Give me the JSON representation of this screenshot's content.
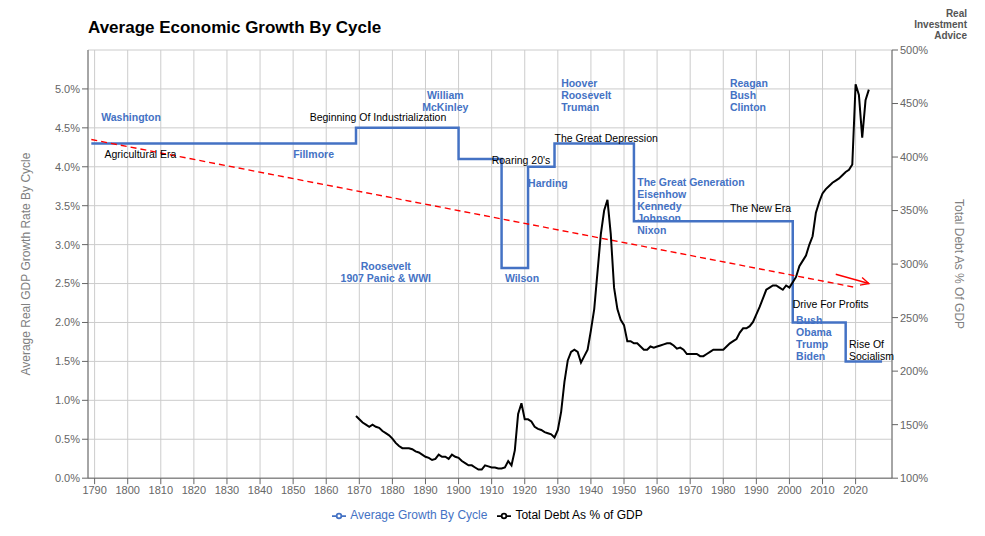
{
  "chart_data": {
    "type": "line",
    "title": "Average Economic Growth By Cycle",
    "subtitle": "Real\nInvestment\nAdvice",
    "ylabel": "Average Real GDP Growth Rate By Cycle",
    "y2label": "Total Debt As % Of GDP",
    "xlim": [
      1788,
      2031
    ],
    "xticks": [
      1790,
      1800,
      1810,
      1820,
      1830,
      1840,
      1850,
      1860,
      1870,
      1880,
      1890,
      1900,
      1910,
      1920,
      1930,
      1940,
      1950,
      1960,
      1970,
      1980,
      1990,
      2000,
      2010,
      2020
    ],
    "ylim": [
      0.0,
      0.055
    ],
    "yticks": [
      {
        "value": 0.0,
        "label": "0.0%"
      },
      {
        "value": 0.005,
        "label": "0.5%"
      },
      {
        "value": 0.01,
        "label": "1.0%"
      },
      {
        "value": 0.015,
        "label": "1.5%"
      },
      {
        "value": 0.02,
        "label": "2.0%"
      },
      {
        "value": 0.025,
        "label": "2.5%"
      },
      {
        "value": 0.03,
        "label": "3.0%"
      },
      {
        "value": 0.035,
        "label": "3.5%"
      },
      {
        "value": 0.04,
        "label": "4.0%"
      },
      {
        "value": 0.045,
        "label": "4.5%"
      },
      {
        "value": 0.05,
        "label": "5.0%"
      }
    ],
    "y2lim": [
      1.0,
      5.0
    ],
    "y2ticks": [
      {
        "value": 1.0,
        "label": "100%"
      },
      {
        "value": 1.5,
        "label": "150%"
      },
      {
        "value": 2.0,
        "label": "200%"
      },
      {
        "value": 2.5,
        "label": "250%"
      },
      {
        "value": 3.0,
        "label": "300%"
      },
      {
        "value": 3.5,
        "label": "350%"
      },
      {
        "value": 4.0,
        "label": "400%"
      },
      {
        "value": 4.5,
        "label": "450%"
      },
      {
        "value": 5.0,
        "label": "500%"
      }
    ],
    "grid": true,
    "legend": "bottom",
    "series": [
      {
        "name": "Average Growth By Cycle",
        "color": "#4472C4",
        "line_style": "solid",
        "x": [
          1789,
          1849,
          1849,
          1869,
          1869,
          1900,
          1900,
          1913,
          1913,
          1921,
          1921,
          1929,
          1929,
          1953,
          1953,
          1974,
          1974,
          2001,
          2001,
          2017,
          2017,
          2028
        ],
        "values": [
          0.043,
          0.043,
          0.043,
          0.043,
          0.045,
          0.045,
          0.041,
          0.041,
          0.027,
          0.027,
          0.04,
          0.04,
          0.043,
          0.043,
          0.033,
          0.033,
          0.033,
          0.033,
          0.02,
          0.02,
          0.015,
          0.015
        ]
      },
      {
        "color": "#FF0000",
        "line_style": "dashed",
        "x": [
          1789,
          2020
        ],
        "values": [
          0.0435,
          0.0245
        ]
      },
      {
        "color": "#FF0000",
        "line_style": "solid",
        "marker": "arrow",
        "x": [
          2014,
          2024
        ],
        "values": [
          0.0262,
          0.025
        ]
      },
      {
        "name": "Total Debt As % of GDP",
        "color": "#000000",
        "line_style": "solid",
        "axis": "y2",
        "x": [
          1869,
          1870,
          1871,
          1872,
          1873,
          1874,
          1875,
          1876,
          1877,
          1878,
          1879,
          1880,
          1881,
          1882,
          1883,
          1884,
          1885,
          1886,
          1887,
          1888,
          1889,
          1890,
          1891,
          1892,
          1893,
          1894,
          1895,
          1896,
          1897,
          1898,
          1899,
          1900,
          1901,
          1902,
          1903,
          1904,
          1905,
          1906,
          1907,
          1908,
          1909,
          1910,
          1911,
          1912,
          1913,
          1914,
          1915,
          1916,
          1917,
          1918,
          1919,
          1920,
          1921,
          1922,
          1923,
          1924,
          1925,
          1926,
          1927,
          1928,
          1929,
          1930,
          1931,
          1932,
          1933,
          1934,
          1935,
          1936,
          1937,
          1938,
          1939,
          1940,
          1941,
          1942,
          1943,
          1944,
          1945,
          1946,
          1947,
          1948,
          1949,
          1950,
          1951,
          1952,
          1953,
          1954,
          1955,
          1956,
          1957,
          1958,
          1959,
          1960,
          1961,
          1962,
          1963,
          1964,
          1965,
          1966,
          1967,
          1968,
          1969,
          1970,
          1971,
          1972,
          1973,
          1974,
          1975,
          1976,
          1977,
          1978,
          1979,
          1980,
          1981,
          1982,
          1983,
          1984,
          1985,
          1986,
          1987,
          1988,
          1989,
          1990,
          1991,
          1992,
          1993,
          1994,
          1995,
          1996,
          1997,
          1998,
          1999,
          2000,
          2001,
          2002,
          2003,
          2004,
          2005,
          2006,
          2007,
          2008,
          2009,
          2010,
          2011,
          2012,
          2013,
          2014,
          2015,
          2016,
          2017,
          2018,
          2019,
          2020,
          2021,
          2022,
          2023,
          2024
        ],
        "values": [
          1.58,
          1.55,
          1.52,
          1.5,
          1.48,
          1.5,
          1.48,
          1.47,
          1.44,
          1.42,
          1.4,
          1.37,
          1.33,
          1.3,
          1.28,
          1.28,
          1.28,
          1.27,
          1.25,
          1.24,
          1.22,
          1.2,
          1.19,
          1.17,
          1.18,
          1.22,
          1.2,
          1.2,
          1.18,
          1.22,
          1.2,
          1.19,
          1.16,
          1.14,
          1.12,
          1.12,
          1.1,
          1.08,
          1.08,
          1.12,
          1.11,
          1.1,
          1.1,
          1.09,
          1.09,
          1.1,
          1.16,
          1.12,
          1.26,
          1.6,
          1.7,
          1.55,
          1.55,
          1.53,
          1.48,
          1.46,
          1.45,
          1.43,
          1.42,
          1.41,
          1.38,
          1.45,
          1.62,
          1.9,
          2.1,
          2.18,
          2.2,
          2.18,
          2.08,
          2.14,
          2.2,
          2.38,
          2.58,
          2.93,
          3.28,
          3.5,
          3.6,
          3.28,
          2.78,
          2.58,
          2.48,
          2.43,
          2.28,
          2.28,
          2.26,
          2.26,
          2.23,
          2.2,
          2.2,
          2.23,
          2.22,
          2.23,
          2.24,
          2.25,
          2.26,
          2.26,
          2.24,
          2.21,
          2.22,
          2.2,
          2.16,
          2.16,
          2.16,
          2.16,
          2.14,
          2.14,
          2.16,
          2.18,
          2.2,
          2.2,
          2.2,
          2.2,
          2.23,
          2.26,
          2.28,
          2.3,
          2.36,
          2.4,
          2.4,
          2.42,
          2.46,
          2.53,
          2.6,
          2.68,
          2.76,
          2.78,
          2.8,
          2.8,
          2.78,
          2.76,
          2.8,
          2.78,
          2.83,
          2.88,
          2.98,
          3.03,
          3.08,
          3.18,
          3.26,
          3.48,
          3.58,
          3.66,
          3.7,
          3.73,
          3.76,
          3.78,
          3.8,
          3.83,
          3.86,
          3.88,
          3.93,
          4.68,
          4.58,
          4.18,
          4.53,
          4.63
        ]
      }
    ],
    "annotations": [
      {
        "text": "Washington",
        "x": 1792,
        "y": 0.0455,
        "color": "#4472C4",
        "weight": "bold",
        "align": "left"
      },
      {
        "text": "Agricultural Era",
        "x": 1793,
        "y": 0.0408,
        "color": "black",
        "weight": "normal",
        "align": "left"
      },
      {
        "text": "Fillmore",
        "x": 1850,
        "y": 0.0408,
        "color": "#4472C4",
        "weight": "bold",
        "align": "left"
      },
      {
        "text": "Beginning Of Industrialization",
        "x": 1855,
        "y": 0.0455,
        "color": "black",
        "weight": "normal",
        "align": "left"
      },
      {
        "text": "William\nMcKinley",
        "x": 1896,
        "y": 0.0468,
        "color": "#4472C4",
        "weight": "bold",
        "align": "center"
      },
      {
        "text": "Roosevelt\n1907 Panic & WWI",
        "x": 1878,
        "y": 0.0248,
        "color": "#4472C4",
        "weight": "bold",
        "align": "center"
      },
      {
        "text": "Harding",
        "x": 1921,
        "y": 0.037,
        "color": "#4472C4",
        "weight": "bold",
        "align": "left"
      },
      {
        "text": "Wilson",
        "x": 1914,
        "y": 0.0248,
        "color": "#4472C4",
        "weight": "bold",
        "align": "left"
      },
      {
        "text": "Roaring 20's",
        "x": 1910,
        "y": 0.04,
        "color": "black",
        "weight": "normal",
        "align": "left"
      },
      {
        "text": "Hoover\nRoosevelt\nTruman",
        "x": 1931,
        "y": 0.0468,
        "color": "#4472C4",
        "weight": "bold",
        "align": "left"
      },
      {
        "text": "The Great Depression",
        "x": 1929,
        "y": 0.0428,
        "color": "black",
        "weight": "normal",
        "align": "left"
      },
      {
        "text": "The Great Generation\nEisenhow\nKennedy\nJohnson\nNixon",
        "x": 1954,
        "y": 0.031,
        "color": "#4472C4",
        "weight": "bold",
        "align": "left"
      },
      {
        "text": "Reagan\nBush\nClinton",
        "x": 1982,
        "y": 0.0468,
        "color": "#4472C4",
        "weight": "bold",
        "align": "left"
      },
      {
        "text": "The New Era",
        "x": 1982,
        "y": 0.0338,
        "color": "black",
        "weight": "normal",
        "align": "left"
      },
      {
        "text": "Drive For Profits",
        "x": 2001,
        "y": 0.0215,
        "color": "black",
        "weight": "normal",
        "align": "left"
      },
      {
        "text": "Bush\nObama\nTrump\nBiden",
        "x": 2002,
        "y": 0.0148,
        "color": "#4472C4",
        "weight": "bold",
        "align": "left"
      },
      {
        "text": "Rise Of\nSocialism",
        "x": 2018,
        "y": 0.0148,
        "color": "black",
        "weight": "normal",
        "align": "left"
      }
    ]
  }
}
